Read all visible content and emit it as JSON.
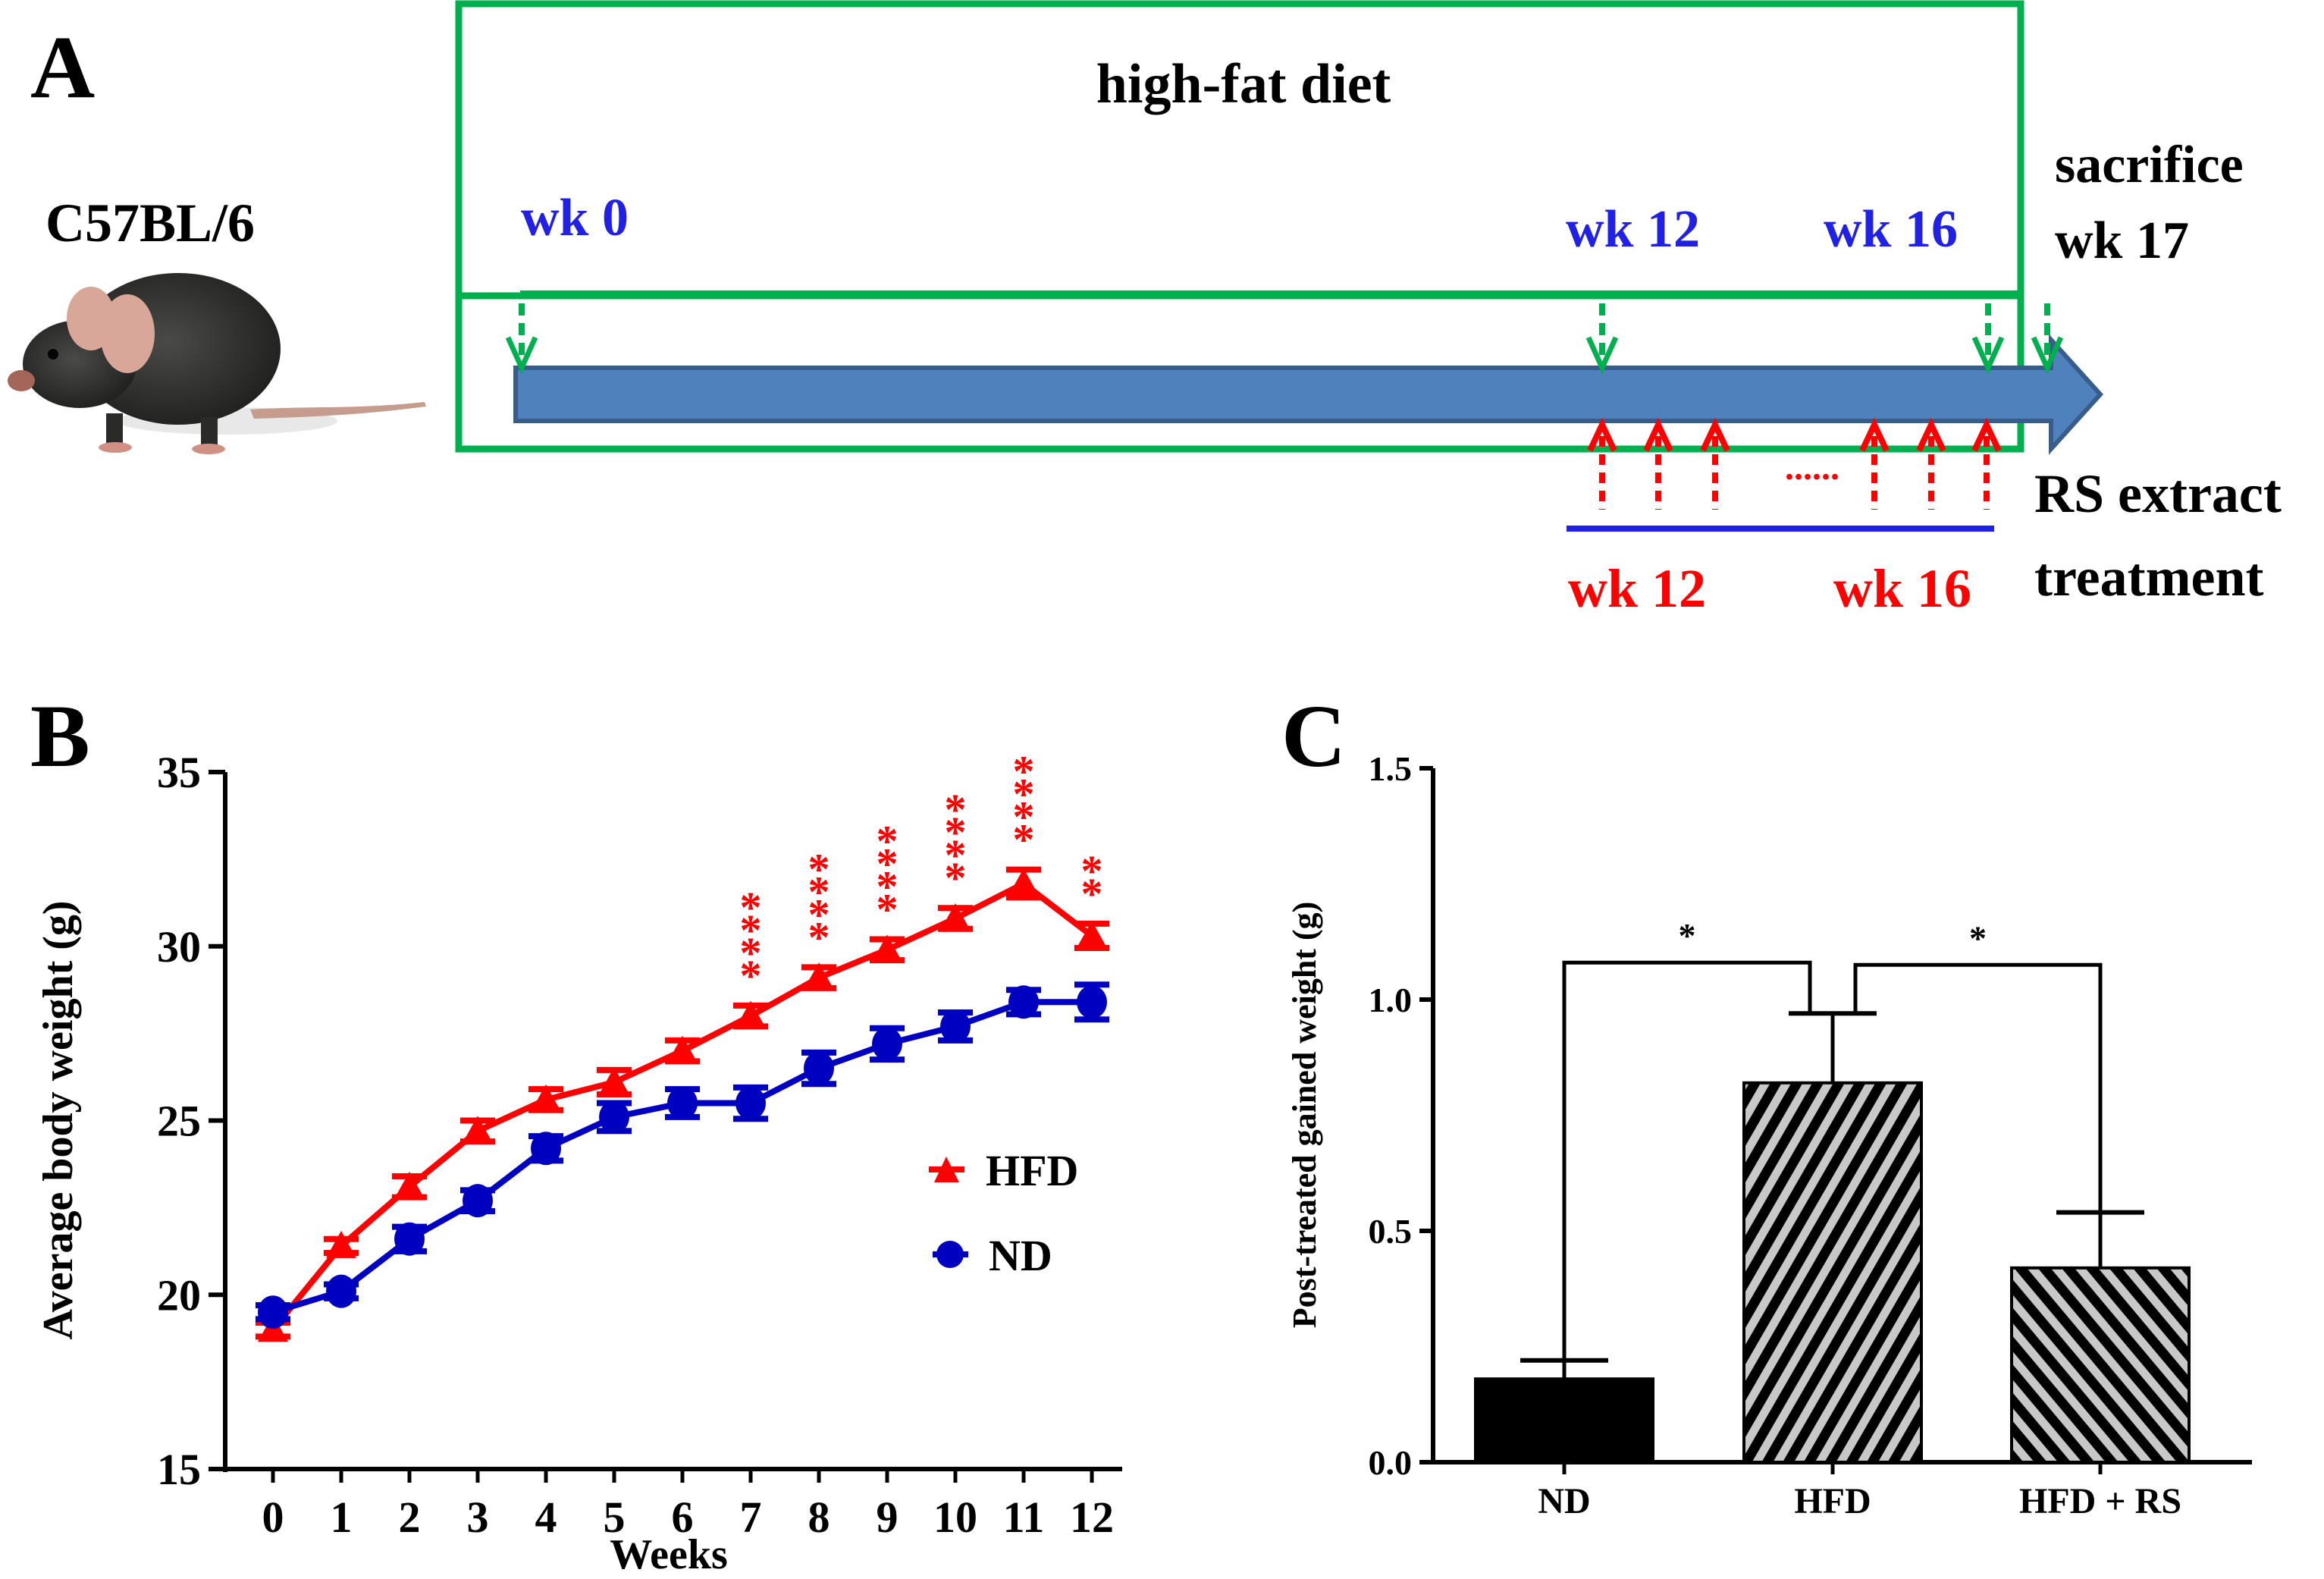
{
  "panel_a": {
    "label": "A",
    "strain": "C57BL/6",
    "diet_box_title": "high-fat diet",
    "timeline_top": [
      {
        "label": "wk 0",
        "week": 0
      },
      {
        "label": "wk 12",
        "week": 12
      },
      {
        "label": "wk 16",
        "week": 16
      }
    ],
    "sacrifice_line1": "sacrifice",
    "sacrifice_line2": "wk 17",
    "treatment_start": "wk 12",
    "treatment_end": "wk 16",
    "treatment_ellipsis": "......",
    "treatment_label_line1": "RS extract",
    "treatment_label_line2": "treatment",
    "colors": {
      "box": "#00b04f",
      "arrow_bar": "#4f81bd",
      "arrow_bar_edge": "#385d8a",
      "week_blue": "#2121e6",
      "week_red": "#ff0000",
      "treatment_line": "#2121e6"
    }
  },
  "chart_data": [
    {
      "panel": "B",
      "type": "line",
      "title": "",
      "xlabel": "Weeks",
      "ylabel": "Average body weight (g)",
      "x": [
        0,
        1,
        2,
        3,
        4,
        5,
        6,
        7,
        8,
        9,
        10,
        11,
        12
      ],
      "x_tick_labels": [
        "0",
        "1",
        "2",
        "3",
        "4",
        "5",
        "6",
        "7",
        "8",
        "9",
        "10",
        "11",
        "12"
      ],
      "ylim": [
        15,
        35
      ],
      "y_ticks": [
        15,
        20,
        25,
        30,
        35
      ],
      "y_tick_labels": [
        "15",
        "20",
        "25",
        "30",
        "35"
      ],
      "grid": false,
      "legend_position": "center-right",
      "series": [
        {
          "name": "HFD",
          "marker": "triangle",
          "color": "#ff0000",
          "values": [
            19.0,
            21.4,
            23.1,
            24.7,
            25.6,
            26.1,
            27.0,
            28.0,
            29.1,
            29.9,
            30.8,
            31.8,
            30.3
          ],
          "error": [
            0.2,
            0.2,
            0.3,
            0.3,
            0.3,
            0.35,
            0.3,
            0.3,
            0.3,
            0.3,
            0.3,
            0.4,
            0.35
          ]
        },
        {
          "name": "ND",
          "marker": "circle",
          "color": "#0000c0",
          "values": [
            19.5,
            20.1,
            21.6,
            22.7,
            24.2,
            25.1,
            25.5,
            25.5,
            26.5,
            27.2,
            27.7,
            28.4,
            28.4
          ],
          "error": [
            0.2,
            0.2,
            0.35,
            0.3,
            0.35,
            0.4,
            0.4,
            0.45,
            0.45,
            0.45,
            0.4,
            0.35,
            0.5
          ]
        }
      ],
      "annotations": [
        {
          "x": 7,
          "text": "****"
        },
        {
          "x": 8,
          "text": "****"
        },
        {
          "x": 9,
          "text": "****"
        },
        {
          "x": 10,
          "text": "****"
        },
        {
          "x": 11,
          "text": "****"
        },
        {
          "x": 12,
          "text": "**"
        }
      ]
    },
    {
      "panel": "C",
      "type": "bar",
      "title": "",
      "xlabel": "",
      "ylabel": "Post-treated gained weight (g)",
      "categories": [
        "ND",
        "HFD",
        "HFD +  RS"
      ],
      "values": [
        0.18,
        0.82,
        0.42
      ],
      "error_upper": [
        0.22,
        0.97,
        0.54
      ],
      "fills": [
        "solid-black",
        "hatch-forward",
        "hatch-backward"
      ],
      "ylim": [
        0,
        1.5
      ],
      "y_ticks": [
        0.0,
        0.5,
        1.0,
        1.5
      ],
      "y_tick_labels": [
        "0.0",
        "0.5",
        "1.0",
        "1.5"
      ],
      "grid": false,
      "significance": [
        {
          "from": "ND",
          "to": "HFD",
          "text": "*",
          "level": 1.08
        },
        {
          "from": "HFD",
          "to": "HFD +  RS",
          "text": "*",
          "level": 1.075
        }
      ]
    }
  ],
  "panel_labels": {
    "b": "B",
    "c": "C"
  }
}
